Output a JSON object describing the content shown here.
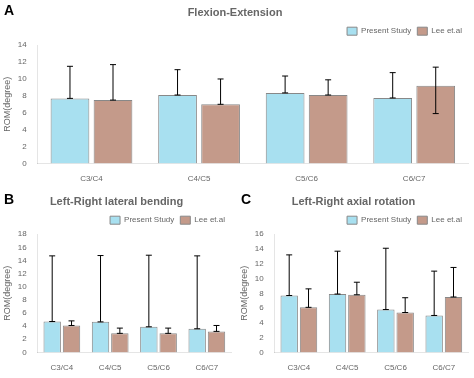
{
  "chart_data": [
    {
      "type": "bar",
      "title": "Flexion-Extension",
      "annotations": [
        "A"
      ],
      "categories": [
        "C3/C4",
        "C4/C5",
        "C5/C6",
        "C6/C7"
      ],
      "ylabel": "ROM(degree)",
      "series": [
        {
          "name": "Present Study",
          "color": "#A8E0F0",
          "values": [
            7.7,
            8.1,
            8.35,
            7.75
          ],
          "error_up": [
            3.8,
            3.0,
            2.0,
            3.0
          ],
          "error_down": [
            0,
            0,
            0,
            0
          ]
        },
        {
          "name": "Lee et.al",
          "color": "#C49A8A",
          "values": [
            7.5,
            7.0,
            8.1,
            9.2
          ],
          "error_up": [
            4.2,
            3.0,
            1.8,
            2.2
          ],
          "error_down": [
            0,
            0,
            0,
            3.3
          ]
        }
      ],
      "ylim": [
        0,
        14
      ],
      "yticks": [
        0,
        2,
        4,
        6,
        8,
        10,
        12,
        14
      ],
      "grid": false,
      "legend": "upper right"
    },
    {
      "type": "bar",
      "title": "Left-Right lateral bending",
      "annotations": [
        "B"
      ],
      "categories": [
        "C3/C4",
        "C4/C5",
        "C5/C6",
        "C6/C7"
      ],
      "ylabel": "ROM(degree)",
      "series": [
        {
          "name": "Present Study",
          "color": "#A8E0F0",
          "values": [
            4.7,
            4.65,
            3.9,
            3.6
          ],
          "error_up": [
            10.0,
            10.1,
            10.9,
            11.1
          ],
          "error_down": [
            0,
            0,
            0,
            0
          ]
        },
        {
          "name": "Lee et.al",
          "color": "#C49A8A",
          "values": [
            4.1,
            2.9,
            2.9,
            3.2
          ],
          "error_up": [
            0.7,
            0.8,
            0.8,
            0.9
          ],
          "error_down": [
            0,
            0,
            0,
            0
          ]
        }
      ],
      "ylim": [
        0,
        18
      ],
      "yticks": [
        0,
        2,
        4,
        6,
        8,
        10,
        12,
        14,
        16,
        18
      ],
      "grid": false,
      "legend": "upper right"
    },
    {
      "type": "bar",
      "title": "Left-Right axial rotation",
      "annotations": [
        "C"
      ],
      "categories": [
        "C3/C4",
        "C4/C5",
        "C5/C6",
        "C6/C7"
      ],
      "ylabel": "ROM(degree)",
      "series": [
        {
          "name": "Present Study",
          "color": "#A8E0F0",
          "values": [
            7.7,
            7.9,
            5.8,
            5.0
          ],
          "error_up": [
            5.5,
            5.8,
            8.3,
            6.0
          ],
          "error_down": [
            0,
            0,
            0,
            0
          ]
        },
        {
          "name": "Lee et.al",
          "color": "#C49A8A",
          "values": [
            6.1,
            7.8,
            5.4,
            7.5
          ],
          "error_up": [
            2.5,
            1.7,
            2.0,
            4.0
          ],
          "error_down": [
            0,
            0,
            0,
            0
          ]
        }
      ],
      "ylim": [
        0,
        16
      ],
      "yticks": [
        0,
        2,
        4,
        6,
        8,
        10,
        12,
        14,
        16
      ],
      "grid": false,
      "legend": "upper right"
    }
  ]
}
